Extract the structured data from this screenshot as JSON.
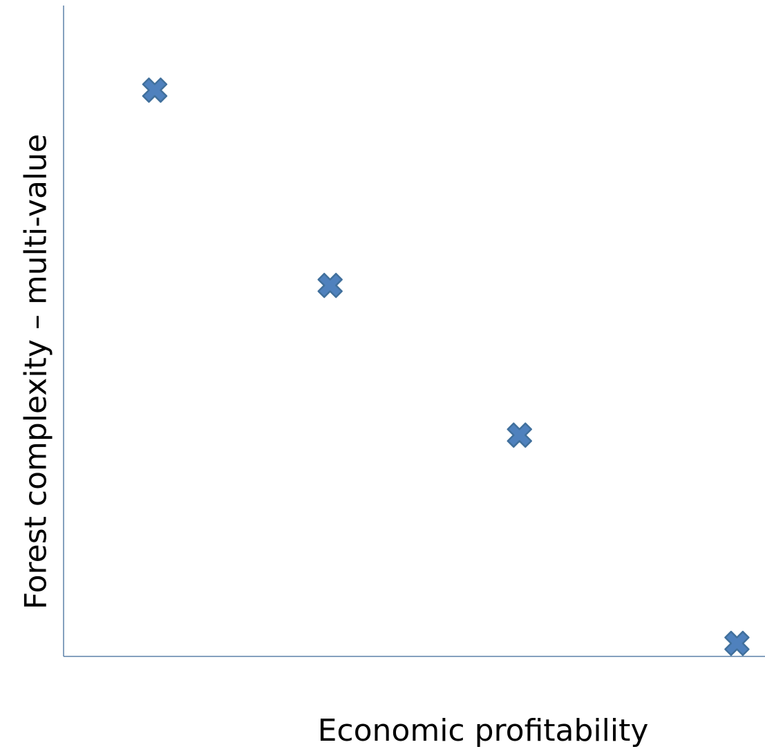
{
  "chart_data": {
    "type": "scatter",
    "title": "",
    "xlabel": "Economic profitability",
    "ylabel": "Forest complexity – multi-value",
    "xlim": [
      0,
      10
    ],
    "ylim": [
      0,
      10
    ],
    "points": [
      {
        "x": 1.3,
        "y": 8.7
      },
      {
        "x": 3.8,
        "y": 5.7
      },
      {
        "x": 6.5,
        "y": 3.4
      },
      {
        "x": 9.6,
        "y": 0.2
      }
    ],
    "marker": "x",
    "marker_color": "#4f81bd",
    "axis_color": "#5b80a8",
    "grid": false,
    "legend": "none",
    "ticks": false
  }
}
